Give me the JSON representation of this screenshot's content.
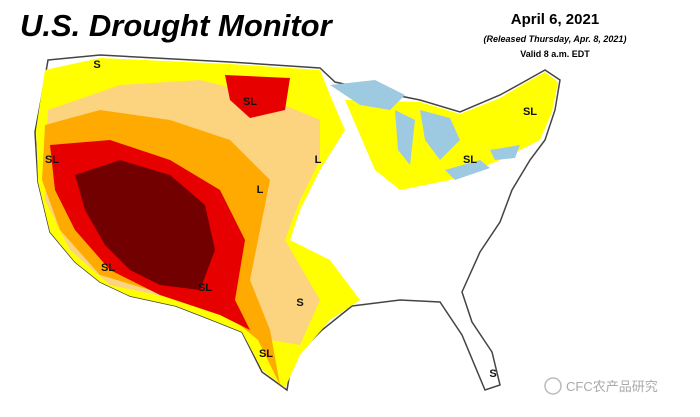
{
  "header": {
    "title": "U.S. Drought Monitor",
    "date": "April 6, 2021",
    "released": "(Released Thursday, Apr. 8, 2021)",
    "valid": "Valid 8 a.m. EDT"
  },
  "map_labels": [
    "S",
    "SL",
    "SL",
    "L",
    "L",
    "SL",
    "SL",
    "SL",
    "SL",
    "S",
    "SL",
    "S"
  ],
  "watermark": "CFC农产品研究"
}
